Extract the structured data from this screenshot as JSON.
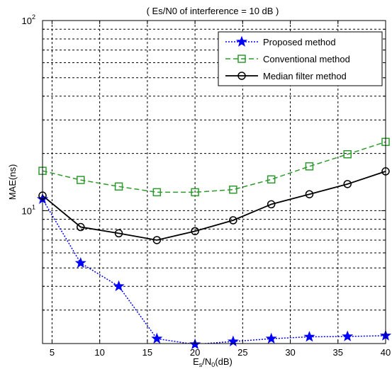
{
  "chart_data": {
    "type": "line",
    "title": "( Es/N0 of interference = 10 dB )",
    "xlabel": "Es/N0(dB)",
    "ylabel": "MAE(ns)",
    "xlim": [
      4,
      40
    ],
    "ylim": [
      2,
      100
    ],
    "yscale": "log",
    "grid": true,
    "legend_position": "top-right",
    "x": [
      4,
      8,
      12,
      16,
      20,
      24,
      28,
      32,
      36,
      40
    ],
    "x_ticks": [
      5,
      10,
      15,
      20,
      25,
      30,
      35,
      40
    ],
    "x_tick_labels": [
      "5",
      "10",
      "15",
      "20",
      "25",
      "30",
      "35",
      "40"
    ],
    "series": [
      {
        "name": "Proposed method",
        "color": "#0000ff",
        "line_style": "dotted",
        "marker": "star",
        "values": [
          11.5,
          5.3,
          4.0,
          2.12,
          1.98,
          2.05,
          2.12,
          2.17,
          2.18,
          2.2
        ]
      },
      {
        "name": "Conventional method",
        "color": "#2e9a2e",
        "line_style": "dashed",
        "marker": "square",
        "values": [
          16.2,
          14.5,
          13.4,
          12.5,
          12.5,
          12.9,
          14.6,
          17.1,
          19.8,
          23.0
        ]
      },
      {
        "name": "Median filter method",
        "color": "#000000",
        "line_style": "solid",
        "marker": "circle",
        "values": [
          12.0,
          8.2,
          7.6,
          7.0,
          7.8,
          8.9,
          10.8,
          12.2,
          13.8,
          16.1
        ]
      }
    ]
  }
}
